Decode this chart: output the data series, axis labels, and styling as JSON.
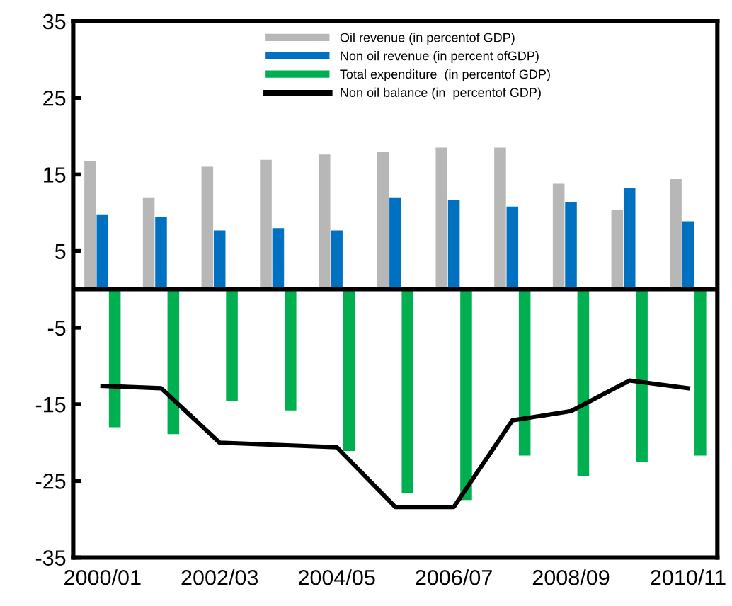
{
  "chart_data": {
    "type": "bar",
    "categories": [
      "2000/01",
      null,
      "2002/03",
      null,
      "2004/05",
      null,
      "2006/07",
      null,
      "2008/09",
      null,
      "2010/11"
    ],
    "series": [
      {
        "name": "Oil revenue (in percentof GDP)",
        "color": "#b7b7b7",
        "values": [
          16.7,
          12.0,
          16.0,
          16.9,
          17.6,
          17.9,
          18.5,
          18.5,
          13.8,
          10.4,
          14.4
        ]
      },
      {
        "name": "Non oil revenue (in percent ofGDP)",
        "color": "#0070c0",
        "values": [
          9.8,
          9.5,
          7.7,
          8.0,
          7.7,
          12.0,
          11.7,
          10.8,
          11.4,
          13.2,
          8.9
        ]
      },
      {
        "name": "Total expenditure  (in percentof GDP)",
        "color": "#00b050",
        "values": [
          -18.0,
          -18.9,
          -14.6,
          -15.8,
          -21.1,
          -26.6,
          -27.5,
          -21.7,
          -24.4,
          -22.5,
          -21.7
        ]
      },
      {
        "name": "Non oil balance (in  percentof GDP)",
        "type": "line",
        "color": "#000000",
        "values": [
          -12.6,
          -12.9,
          -20.0,
          -20.3,
          -20.6,
          -28.4,
          -28.4,
          -17.1,
          -15.9,
          -11.9,
          -12.9
        ]
      }
    ],
    "ylim": [
      -35,
      35
    ],
    "yticks": [
      -35,
      -25,
      -15,
      -5,
      5,
      15,
      25,
      35
    ],
    "ref_lines": [
      {
        "axis": "y",
        "value": 0,
        "color": "#000000"
      }
    ],
    "grid": false,
    "legend": "top",
    "marker": "none",
    "line_style": "solid"
  }
}
